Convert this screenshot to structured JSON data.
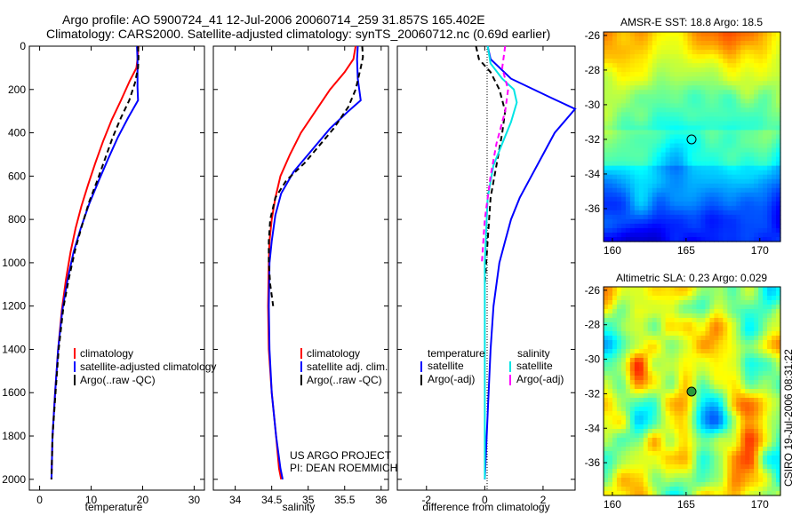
{
  "header": {
    "title_line1": "Argo profile: AO 5900724_41 12-Jul-2006 20060714_259 31.857S 165.402E",
    "title_line2": "Climatology: CARS2000. Satellite-adjusted climatology: synTS_20060712.nc (0.69d earlier)"
  },
  "credits": {
    "line1": "US ARGO PROJECT",
    "line2": "PI: DEAN ROEMMICH"
  },
  "footer_stamp": "CSIRO 19-Jul-2006 08:31:22",
  "colors": {
    "climatology": "#ff0000",
    "satellite": "#0000ff",
    "argo": "#000000",
    "salinity_sat": "#00e5e5",
    "salinity_argo": "#ff00ff"
  },
  "chart_data": [
    {
      "type": "line",
      "panel": "temperature",
      "xlabel": "temperature",
      "xlim": [
        -2,
        32
      ],
      "ylim": [
        2050,
        0
      ],
      "xticks": [
        "0",
        "10",
        "20",
        "30"
      ],
      "yticks": [
        "0",
        "200",
        "400",
        "600",
        "800",
        "1000",
        "1200",
        "1400",
        "1600",
        "1800",
        "2000"
      ],
      "legend": [
        "climatology",
        "satellite-adjusted climatology",
        "Argo(..raw -QC)"
      ],
      "series": [
        {
          "name": "climatology",
          "color": "#ff0000",
          "x": [
            19.2,
            19,
            18.8,
            17.5,
            15.8,
            14,
            12.3,
            10.8,
            9.4,
            8.1,
            7,
            6,
            5.1,
            4.3,
            3.6,
            3,
            2.5,
            2.3
          ],
          "y": [
            0,
            60,
            100,
            160,
            250,
            340,
            440,
            540,
            640,
            740,
            840,
            950,
            1080,
            1220,
            1400,
            1600,
            1800,
            2000
          ]
        },
        {
          "name": "satellite-adjusted climatology",
          "color": "#0000ff",
          "x": [
            18.9,
            19,
            19,
            19,
            19.1,
            17.2,
            15.2,
            13.3,
            11.5,
            9.6,
            8,
            6.6,
            5.4,
            4.4,
            3.6,
            3,
            2.5,
            2.3
          ],
          "y": [
            0,
            60,
            120,
            190,
            250,
            330,
            420,
            520,
            620,
            730,
            840,
            950,
            1080,
            1220,
            1400,
            1600,
            1800,
            2000
          ]
        },
        {
          "name": "Argo(..raw -QC)",
          "color": "#000000",
          "dash": "6,4",
          "x": [
            19.1,
            19.2,
            19.1,
            18.5,
            17.4,
            15.8,
            14.2,
            12.7,
            11.2,
            9.6,
            8.2,
            6.9,
            5.7,
            4.6,
            3.7,
            3.1,
            2.5,
            2.3
          ],
          "y": [
            0,
            50,
            100,
            170,
            250,
            330,
            420,
            520,
            620,
            720,
            830,
            940,
            1070,
            1210,
            1400,
            1600,
            1800,
            2000
          ]
        }
      ]
    },
    {
      "type": "line",
      "panel": "salinity",
      "xlabel": "salinity",
      "xlim": [
        33.7,
        36.1
      ],
      "ylim": [
        2050,
        0
      ],
      "xticks": [
        "34",
        "34.5",
        "35",
        "35.5",
        "36"
      ],
      "legend": [
        "climatology",
        "satellite adj. clim.",
        "Argo(..raw -QC)"
      ],
      "series": [
        {
          "name": "climatology",
          "color": "#ff0000",
          "x": [
            35.65,
            35.62,
            35.5,
            35.3,
            35.1,
            34.9,
            34.75,
            34.62,
            34.55,
            34.5,
            34.47,
            34.46,
            34.45,
            34.46,
            34.5,
            34.56,
            34.6,
            34.63
          ],
          "y": [
            0,
            60,
            120,
            200,
            300,
            400,
            500,
            600,
            700,
            800,
            900,
            1000,
            1200,
            1400,
            1600,
            1800,
            1950,
            2000
          ]
        },
        {
          "name": "satellite adj. clim.",
          "color": "#0000ff",
          "x": [
            35.68,
            35.67,
            35.68,
            35.72,
            35.55,
            35.3,
            35.05,
            34.8,
            34.63,
            34.55,
            34.5,
            34.47,
            34.46,
            34.47,
            34.5,
            34.56,
            34.62,
            34.65
          ],
          "y": [
            0,
            60,
            150,
            250,
            300,
            380,
            480,
            580,
            680,
            780,
            900,
            1000,
            1200,
            1400,
            1600,
            1800,
            1950,
            2000
          ]
        },
        {
          "name": "Argo(..raw -QC)",
          "color": "#000000",
          "dash": "6,4",
          "x": [
            35.74,
            35.75,
            35.72,
            35.65,
            35.55,
            35.35,
            35.15,
            34.95,
            34.7,
            34.55,
            34.48,
            34.46,
            34.46,
            34.48,
            34.52
          ],
          "y": [
            0,
            50,
            100,
            200,
            280,
            380,
            460,
            540,
            620,
            700,
            800,
            900,
            1000,
            1100,
            1200
          ]
        }
      ]
    },
    {
      "type": "line",
      "panel": "difference",
      "xlabel": "difference from climatology",
      "xlim": [
        -3,
        3.1
      ],
      "ylim": [
        2050,
        0
      ],
      "xticks": [
        "-2",
        "0",
        "2"
      ],
      "legend_groups": [
        {
          "title": "temperature",
          "items": [
            "satellite",
            "Argo(-adj)"
          ]
        },
        {
          "title": "salinity",
          "items": [
            "satellite",
            "Argo(-adj)"
          ]
        }
      ],
      "series": [
        {
          "name": "temperature satellite",
          "color": "#0000ff",
          "x": [
            0.1,
            0.2,
            0.9,
            2.3,
            3.1,
            2.4,
            2,
            1.6,
            1.2,
            0.9,
            0.7,
            0.5,
            0.3,
            0.2,
            0.1,
            0
          ],
          "y": [
            0,
            60,
            150,
            240,
            290,
            400,
            500,
            600,
            700,
            800,
            900,
            1000,
            1200,
            1400,
            1700,
            2000
          ]
        },
        {
          "name": "temperature Argo(-adj)",
          "color": "#000000",
          "dash": "6,4",
          "x": [
            -0.3,
            -0.2,
            0.2,
            0.5,
            0.7,
            0.6,
            0.4,
            0.2,
            0.1,
            0
          ],
          "y": [
            0,
            60,
            120,
            200,
            300,
            400,
            550,
            700,
            900,
            1100
          ]
        },
        {
          "name": "salinity satellite",
          "color": "#00e5e5",
          "x": [
            0.1,
            0.2,
            0.6,
            1,
            1.1,
            0.9,
            0.6,
            0.3,
            0.1,
            0,
            0
          ],
          "y": [
            0,
            80,
            150,
            200,
            260,
            350,
            450,
            550,
            700,
            1000,
            2000
          ]
        },
        {
          "name": "salinity Argo(-adj)",
          "color": "#ff00ff",
          "dash": "6,4",
          "x": [
            0.7,
            0.6,
            0.8,
            0.7,
            0.4,
            0.2,
            0,
            -0.1
          ],
          "y": [
            0,
            100,
            200,
            300,
            450,
            600,
            800,
            1000
          ]
        }
      ]
    },
    {
      "type": "heatmap",
      "panel": "sst-map",
      "title": "AMSR-E SST: 18.8  Argo: 18.5",
      "xticks": [
        "160",
        "165",
        "170"
      ],
      "yticks": [
        "-26",
        "-28",
        "-30",
        "-32",
        "-34",
        "-36"
      ],
      "marker": {
        "lon": 165.402,
        "lat": -31.857
      }
    },
    {
      "type": "heatmap",
      "panel": "sla-map",
      "title": "Altimetric SLA: 0.23  Argo: 0.029",
      "xticks": [
        "160",
        "165",
        "170"
      ],
      "yticks": [
        "-26",
        "-28",
        "-30",
        "-32",
        "-34",
        "-36"
      ],
      "marker": {
        "lon": 165.402,
        "lat": -31.857
      }
    }
  ]
}
